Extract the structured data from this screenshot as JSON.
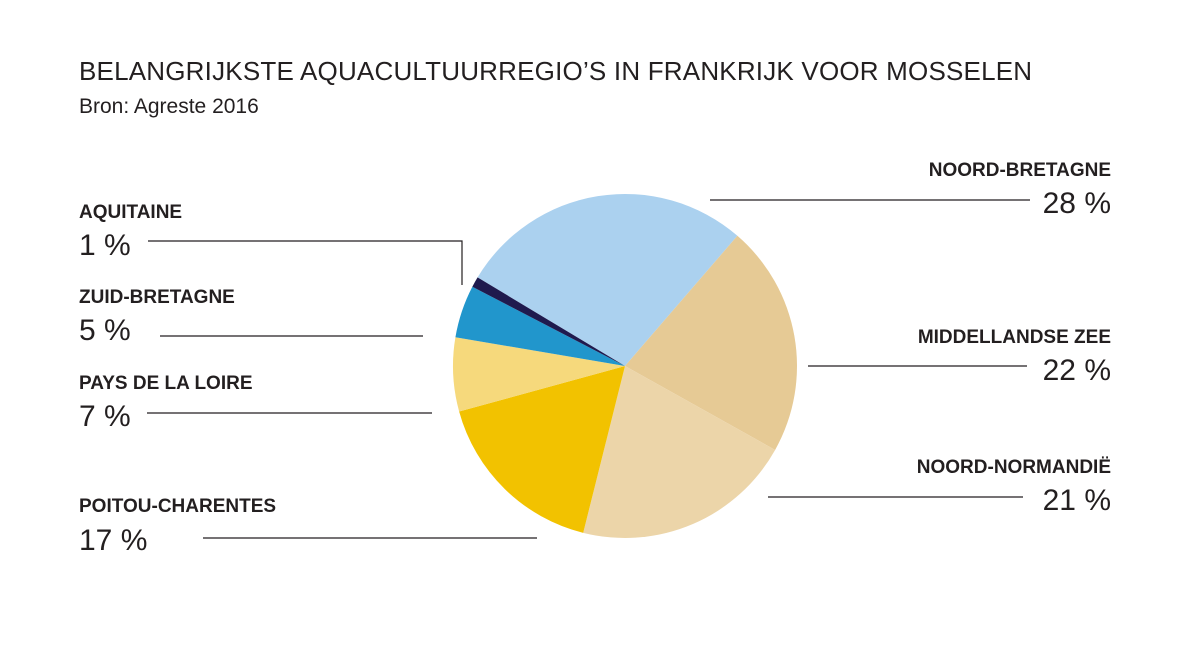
{
  "title": "BELANGRIJKSTE AQUACULTUURREGIO’S IN FRANKRIJK VOOR MOSSELEN",
  "subtitle": "Bron: Agreste 2016",
  "chart_data": {
    "type": "pie",
    "title": "BELANGRIJKSTE AQUACULTUURREGIO’S IN FRANKRIJK VOOR MOSSELEN",
    "source": "Bron: Agreste 2016",
    "unit": "%",
    "slices": [
      {
        "label": "NOORD-BRETAGNE",
        "value": 28,
        "value_label": "28 %",
        "color": "#abd1ef"
      },
      {
        "label": "MIDDELLANDSE ZEE",
        "value": 22,
        "value_label": "22 %",
        "color": "#e6ca95"
      },
      {
        "label": "NOORD-NORMANDIË",
        "value": 21,
        "value_label": "21 %",
        "color": "#ecd5a9"
      },
      {
        "label": "POITOU-CHARENTES",
        "value": 17,
        "value_label": "17 %",
        "color": "#f2c200"
      },
      {
        "label": "PAYS DE LA LOIRE",
        "value": 7,
        "value_label": "7 %",
        "color": "#f6d97c"
      },
      {
        "label": "ZUID-BRETAGNE",
        "value": 5,
        "value_label": "5 %",
        "color": "#2196cc"
      },
      {
        "label": "AQUITAINE",
        "value": 1,
        "value_label": "1 %",
        "color": "#1f1a4e"
      }
    ]
  }
}
